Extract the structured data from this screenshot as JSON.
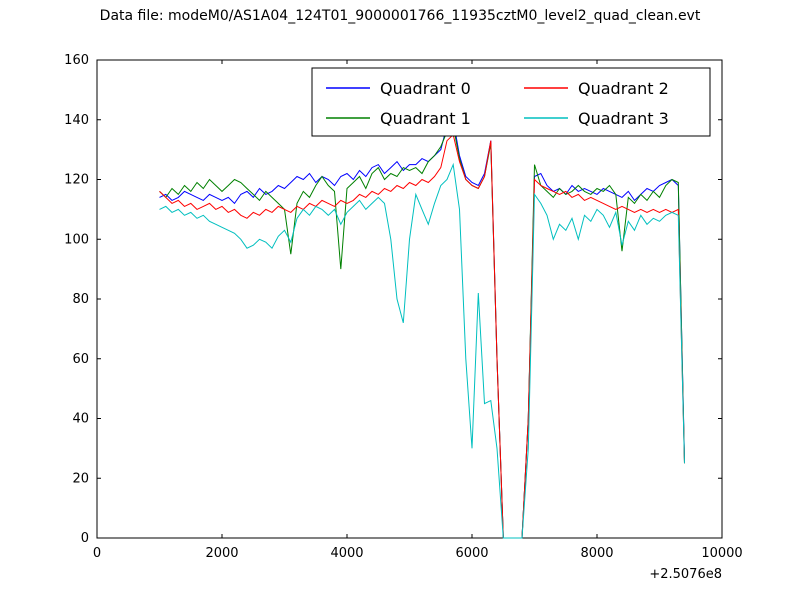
{
  "header": {
    "title": "Data file: modeM0/AS1A04_124T01_9000001766_11935cztM0_level2_quad_clean.evt"
  },
  "chart_data": {
    "type": "line",
    "title": "Data file: modeM0/AS1A04_124T01_9000001766_11935cztM0_level2_quad_clean.evt",
    "xlabel": "",
    "ylabel": "",
    "xlim": [
      0,
      10000
    ],
    "ylim": [
      0,
      160
    ],
    "xticks": [
      0,
      2000,
      4000,
      6000,
      8000,
      10000
    ],
    "yticks": [
      0,
      20,
      40,
      60,
      80,
      100,
      120,
      140,
      160
    ],
    "x_offset_label": "+2.5076e8",
    "grid": false,
    "legend_position": "upper center",
    "legend_columns": 2,
    "x": [
      1000,
      1100,
      1200,
      1300,
      1400,
      1500,
      1600,
      1700,
      1800,
      1900,
      2000,
      2100,
      2200,
      2300,
      2400,
      2500,
      2600,
      2700,
      2800,
      2900,
      3000,
      3100,
      3200,
      3300,
      3400,
      3500,
      3600,
      3700,
      3800,
      3900,
      4000,
      4100,
      4200,
      4300,
      4400,
      4500,
      4600,
      4700,
      4800,
      4900,
      5000,
      5100,
      5200,
      5300,
      5400,
      5500,
      5600,
      5700,
      5800,
      5900,
      6000,
      6100,
      6200,
      6300,
      6400,
      6500,
      6600,
      6700,
      6800,
      6900,
      7000,
      7100,
      7200,
      7300,
      7400,
      7500,
      7600,
      7700,
      7800,
      7900,
      8000,
      8100,
      8200,
      8300,
      8400,
      8500,
      8600,
      8700,
      8800,
      8900,
      9000,
      9100,
      9200,
      9300,
      9400
    ],
    "series": [
      {
        "name": "Quadrant 0",
        "color": "#0000ff",
        "values": [
          114,
          115,
          113,
          114,
          116,
          115,
          114,
          113,
          115,
          114,
          113,
          114,
          112,
          115,
          116,
          114,
          117,
          115,
          116,
          118,
          117,
          119,
          121,
          120,
          122,
          119,
          121,
          120,
          118,
          121,
          122,
          120,
          123,
          121,
          124,
          125,
          122,
          124,
          126,
          123,
          125,
          125,
          127,
          126,
          128,
          130,
          138,
          140,
          128,
          121,
          119,
          118,
          122,
          133,
          60,
          0,
          0,
          0,
          0,
          40,
          121,
          122,
          118,
          116,
          117,
          115,
          118,
          116,
          117,
          116,
          115,
          117,
          116,
          115,
          114,
          116,
          113,
          115,
          117,
          116,
          118,
          119,
          120,
          118,
          26
        ]
      },
      {
        "name": "Quadrant 1",
        "color": "#008000",
        "values": [
          116,
          114,
          117,
          115,
          118,
          116,
          119,
          117,
          120,
          118,
          116,
          118,
          120,
          119,
          117,
          115,
          113,
          116,
          114,
          112,
          110,
          95,
          112,
          116,
          114,
          118,
          121,
          118,
          116,
          90,
          117,
          119,
          121,
          117,
          122,
          124,
          120,
          122,
          121,
          124,
          123,
          124,
          122,
          126,
          128,
          131,
          136,
          138,
          127,
          120,
          118,
          117,
          121,
          132,
          60,
          0,
          0,
          0,
          0,
          40,
          125,
          118,
          116,
          114,
          117,
          115,
          116,
          118,
          116,
          115,
          117,
          116,
          118,
          115,
          96,
          114,
          112,
          115,
          113,
          116,
          114,
          118,
          120,
          119,
          25
        ]
      },
      {
        "name": "Quadrant 2",
        "color": "#ff0000",
        "values": [
          116,
          114,
          112,
          113,
          111,
          112,
          110,
          111,
          112,
          110,
          111,
          109,
          110,
          108,
          107,
          109,
          108,
          110,
          109,
          111,
          110,
          109,
          111,
          110,
          112,
          111,
          113,
          112,
          111,
          113,
          112,
          113,
          115,
          114,
          116,
          115,
          117,
          116,
          118,
          117,
          119,
          118,
          120,
          119,
          121,
          124,
          133,
          135,
          126,
          120,
          118,
          117,
          121,
          133,
          60,
          0,
          0,
          0,
          0,
          40,
          120,
          118,
          117,
          116,
          115,
          116,
          114,
          115,
          113,
          114,
          113,
          112,
          111,
          110,
          111,
          110,
          109,
          110,
          109,
          110,
          109,
          110,
          109,
          110,
          25
        ]
      },
      {
        "name": "Quadrant 3",
        "color": "#00bfbf",
        "values": [
          110,
          111,
          109,
          110,
          108,
          109,
          107,
          108,
          106,
          105,
          104,
          103,
          102,
          100,
          97,
          98,
          100,
          99,
          97,
          101,
          103,
          99,
          107,
          110,
          108,
          111,
          110,
          108,
          110,
          105,
          109,
          111,
          113,
          110,
          112,
          114,
          112,
          100,
          80,
          72,
          100,
          115,
          110,
          105,
          112,
          118,
          120,
          125,
          110,
          60,
          30,
          82,
          45,
          46,
          30,
          0,
          0,
          0,
          0,
          30,
          115,
          112,
          108,
          100,
          105,
          103,
          107,
          100,
          108,
          106,
          110,
          108,
          104,
          109,
          98,
          106,
          103,
          108,
          105,
          107,
          106,
          108,
          109,
          108,
          25
        ]
      }
    ]
  }
}
